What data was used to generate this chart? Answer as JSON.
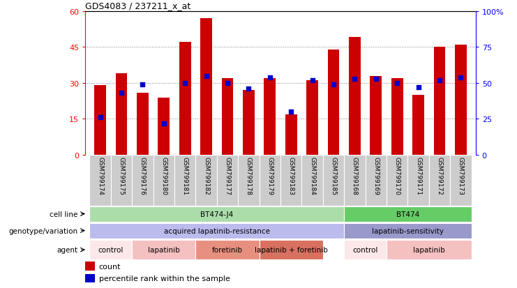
{
  "title": "GDS4083 / 237211_x_at",
  "samples": [
    "GSM799174",
    "GSM799175",
    "GSM799176",
    "GSM799180",
    "GSM799181",
    "GSM799182",
    "GSM799177",
    "GSM799178",
    "GSM799179",
    "GSM799183",
    "GSM799184",
    "GSM799185",
    "GSM799168",
    "GSM799169",
    "GSM799170",
    "GSM799171",
    "GSM799172",
    "GSM799173"
  ],
  "counts": [
    29,
    34,
    26,
    24,
    47,
    57,
    32,
    27,
    32,
    17,
    31,
    44,
    49,
    33,
    32,
    25,
    45,
    46
  ],
  "percentile_ranks": [
    26,
    43,
    49,
    22,
    50,
    55,
    50,
    46,
    54,
    30,
    52,
    49,
    53,
    53,
    50,
    47,
    52,
    54
  ],
  "bar_color": "#cc0000",
  "dot_color": "#0000cc",
  "left_ylim": [
    0,
    60
  ],
  "right_ylim": [
    0,
    100
  ],
  "left_yticks": [
    0,
    15,
    30,
    45,
    60
  ],
  "right_yticks": [
    0,
    25,
    50,
    75,
    100
  ],
  "right_yticklabels": [
    "0",
    "25",
    "50",
    "75",
    "100%"
  ],
  "cell_line_groups": [
    {
      "label": "BT474-J4",
      "start": 0,
      "end": 11,
      "color": "#aaddaa"
    },
    {
      "label": "BT474",
      "start": 12,
      "end": 17,
      "color": "#66cc66"
    }
  ],
  "genotype_groups": [
    {
      "label": "acquired lapatinib-resistance",
      "start": 0,
      "end": 11,
      "color": "#bbbbee"
    },
    {
      "label": "lapatinib-sensitivity",
      "start": 12,
      "end": 17,
      "color": "#9999cc"
    }
  ],
  "agent_groups": [
    {
      "label": "control",
      "start": 0,
      "end": 1,
      "color": "#fce8e8"
    },
    {
      "label": "lapatinib",
      "start": 2,
      "end": 4,
      "color": "#f5c0c0"
    },
    {
      "label": "foretinib",
      "start": 5,
      "end": 7,
      "color": "#e89080"
    },
    {
      "label": "lapatinib + foretinib",
      "start": 8,
      "end": 10,
      "color": "#d97060"
    },
    {
      "label": "control",
      "start": 12,
      "end": 13,
      "color": "#fce8e8"
    },
    {
      "label": "lapatinib",
      "start": 14,
      "end": 17,
      "color": "#f5c0c0"
    }
  ],
  "bg_color": "#ffffff",
  "tick_bg": "#cccccc",
  "bar_width": 0.55
}
